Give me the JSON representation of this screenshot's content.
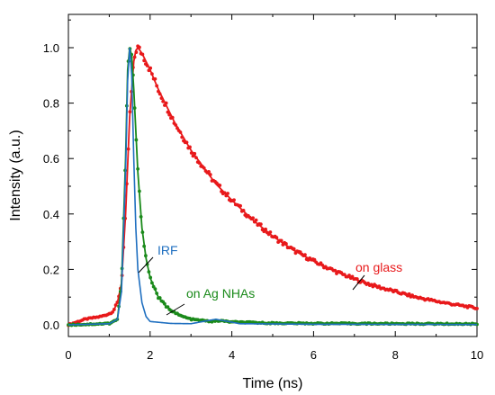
{
  "chart_data": {
    "type": "scatter",
    "xlabel": "Time (ns)",
    "ylabel": "Intensity (a.u.)",
    "xlim": [
      0,
      10
    ],
    "ylim": [
      -0.05,
      1.1
    ],
    "xticks": [
      0,
      2,
      4,
      6,
      8,
      10
    ],
    "yticks": [
      0.0,
      0.2,
      0.4,
      0.6,
      0.8,
      1.0
    ],
    "xtick_labels": [
      "0",
      "2",
      "4",
      "6",
      "8",
      "10"
    ],
    "ytick_labels": [
      "0.0",
      "0.2",
      "0.4",
      "0.6",
      "0.8",
      "1.0"
    ],
    "grid": false,
    "legend": "none",
    "series": [
      {
        "name": "on glass",
        "color": "#e8191b",
        "style": "points+fit",
        "fit": "exponential decay, peak 1.0 at t≈1.7 ns, tau≈2.8 ns",
        "points": {
          "x": [
            0.0,
            0.2,
            0.4,
            0.6,
            0.8,
            1.0,
            1.1,
            1.2,
            1.3,
            1.4,
            1.5,
            1.6,
            1.65,
            1.7,
            1.8,
            1.9,
            2.0,
            2.2,
            2.4,
            2.6,
            2.8,
            3.0,
            3.3,
            3.6,
            4.0,
            4.5,
            5.0,
            5.5,
            6.0,
            6.5,
            7.0,
            7.5,
            8.0,
            8.5,
            9.0,
            9.5,
            10.0
          ],
          "y": [
            0.0,
            0.01,
            0.02,
            0.025,
            0.03,
            0.04,
            0.05,
            0.08,
            0.15,
            0.4,
            0.75,
            0.95,
            0.99,
            1.0,
            0.98,
            0.95,
            0.92,
            0.85,
            0.79,
            0.73,
            0.68,
            0.63,
            0.57,
            0.51,
            0.45,
            0.38,
            0.32,
            0.27,
            0.23,
            0.195,
            0.165,
            0.14,
            0.12,
            0.1,
            0.085,
            0.072,
            0.06
          ]
        }
      },
      {
        "name": "on Ag NHAs",
        "color": "#1a8a1a",
        "style": "points+fit",
        "fit": "fast decay, peak 1.0 at t≈1.5 ns",
        "points": {
          "x": [
            0.0,
            0.5,
            1.0,
            1.2,
            1.3,
            1.4,
            1.45,
            1.5,
            1.55,
            1.6,
            1.7,
            1.8,
            1.9,
            2.0,
            2.2,
            2.4,
            2.7,
            3.0,
            3.5,
            3.7,
            4.0,
            5.0,
            6.0,
            8.0,
            10.0
          ],
          "y": [
            0.0,
            0.002,
            0.005,
            0.02,
            0.15,
            0.6,
            0.92,
            1.0,
            0.97,
            0.85,
            0.55,
            0.35,
            0.24,
            0.17,
            0.1,
            0.065,
            0.035,
            0.02,
            0.012,
            0.015,
            0.01,
            0.006,
            0.005,
            0.004,
            0.003
          ]
        }
      },
      {
        "name": "IRF",
        "color": "#1f6fc0",
        "style": "line",
        "points": {
          "x": [
            0.0,
            1.0,
            1.2,
            1.3,
            1.4,
            1.45,
            1.5,
            1.55,
            1.6,
            1.65,
            1.7,
            1.8,
            1.9,
            2.0,
            2.5,
            3.0,
            3.6,
            3.8,
            4.2,
            6.0,
            10.0
          ],
          "y": [
            0.0,
            0.004,
            0.02,
            0.12,
            0.55,
            0.88,
            1.0,
            0.9,
            0.6,
            0.35,
            0.2,
            0.08,
            0.03,
            0.012,
            0.005,
            0.004,
            0.02,
            0.015,
            0.004,
            0.002,
            0.001
          ]
        }
      }
    ],
    "annotations": [
      {
        "text": "IRF",
        "color": "#1f6fc0"
      },
      {
        "text": "on Ag NHAs",
        "color": "#1a8a1a"
      },
      {
        "text": "on glass",
        "color": "#e8191b"
      }
    ]
  }
}
